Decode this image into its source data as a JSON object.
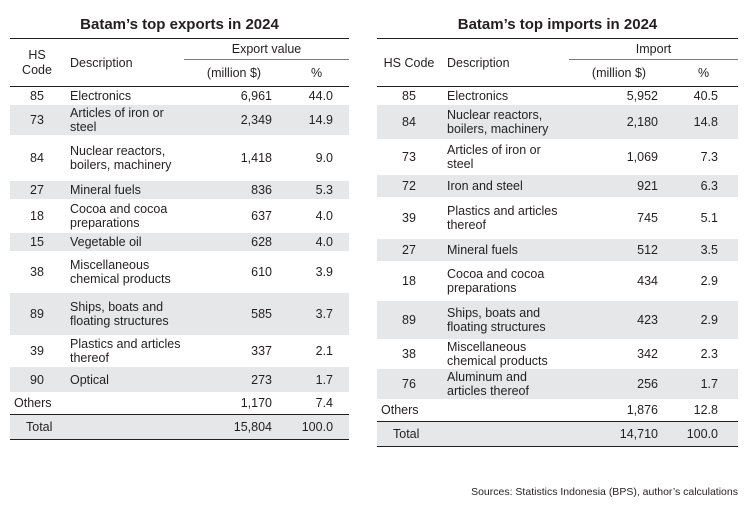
{
  "exports": {
    "title": "Batam’s top exports in 2024",
    "headers": {
      "hs_code": "HS\nCode",
      "description": "Description",
      "value_group": "Export value",
      "value_unit": "(million $)",
      "pct": "%"
    },
    "rows": [
      {
        "code": "85",
        "desc": "Electronics",
        "value": "6,961",
        "pct": "44.0"
      },
      {
        "code": "73",
        "desc": "Articles of iron or steel",
        "value": "2,349",
        "pct": "14.9"
      },
      {
        "code": "84",
        "desc": "Nuclear reactors, boilers, machinery",
        "value": "1,418",
        "pct": "9.0"
      },
      {
        "code": "27",
        "desc": "Mineral fuels",
        "value": "836",
        "pct": "5.3"
      },
      {
        "code": "18",
        "desc": "Cocoa and cocoa preparations",
        "value": "637",
        "pct": "4.0"
      },
      {
        "code": "15",
        "desc": "Vegetable oil",
        "value": "628",
        "pct": "4.0"
      },
      {
        "code": "38",
        "desc": "Miscellaneous chemical products",
        "value": "610",
        "pct": "3.9"
      },
      {
        "code": "89",
        "desc": "Ships, boats and floating structures",
        "value": "585",
        "pct": "3.7"
      },
      {
        "code": "39",
        "desc": "Plastics and articles thereof",
        "value": "337",
        "pct": "2.1"
      },
      {
        "code": "90",
        "desc": "Optical",
        "value": "273",
        "pct": "1.7"
      }
    ],
    "others": {
      "label": "Others",
      "value": "1,170",
      "pct": "7.4"
    },
    "total": {
      "label": "Total",
      "value": "15,804",
      "pct": "100.0"
    }
  },
  "imports": {
    "title": "Batam’s top imports in 2024",
    "headers": {
      "hs_code": "HS Code",
      "description": "Description",
      "value_group": "Import",
      "value_unit": "(million $)",
      "pct": "%"
    },
    "rows": [
      {
        "code": "85",
        "desc": "Electronics",
        "value": "5,952",
        "pct": "40.5"
      },
      {
        "code": "84",
        "desc": "Nuclear reactors, boilers, machinery",
        "value": "2,180",
        "pct": "14.8"
      },
      {
        "code": "73",
        "desc": "Articles of iron or steel",
        "value": "1,069",
        "pct": "7.3"
      },
      {
        "code": "72",
        "desc": "Iron and steel",
        "value": "921",
        "pct": "6.3"
      },
      {
        "code": "39",
        "desc": "Plastics and articles thereof",
        "value": "745",
        "pct": "5.1"
      },
      {
        "code": "27",
        "desc": "Mineral fuels",
        "value": "512",
        "pct": "3.5"
      },
      {
        "code": "18",
        "desc": "Cocoa and cocoa preparations",
        "value": "434",
        "pct": "2.9"
      },
      {
        "code": "89",
        "desc": "Ships, boats and floating structures",
        "value": "423",
        "pct": "2.9"
      },
      {
        "code": "38",
        "desc": "Miscellaneous chemical products",
        "value": "342",
        "pct": "2.3"
      },
      {
        "code": "76",
        "desc": "Aluminum and articles thereof",
        "value": "256",
        "pct": "1.7"
      }
    ],
    "others": {
      "label": "Others",
      "value": "1,876",
      "pct": "12.8"
    },
    "total": {
      "label": "Total",
      "value": "14,710",
      "pct": "100.0"
    }
  },
  "source": "Sources: Statistics Indonesia (BPS), author’s calculations"
}
